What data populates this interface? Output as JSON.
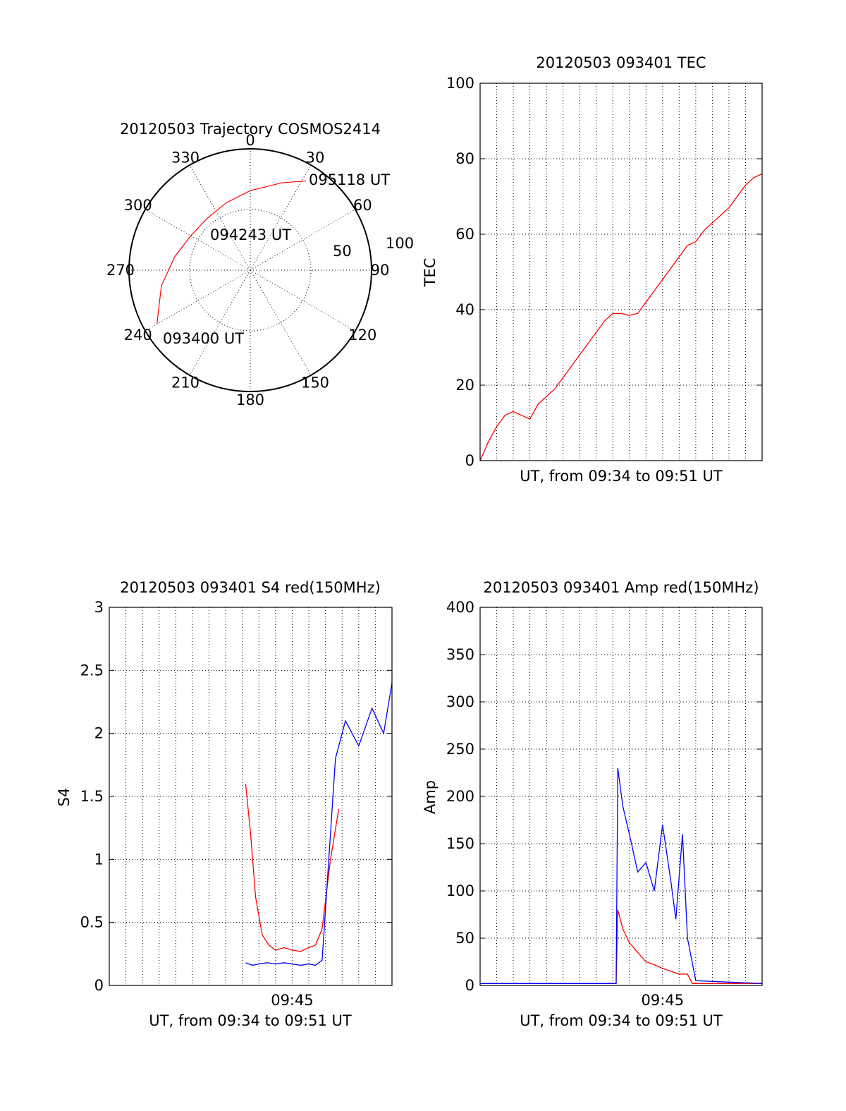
{
  "chart_data": [
    {
      "type": "polar",
      "title": "20120503 Trajectory COSMOS2414",
      "azimuth_labels": [
        "0",
        "30",
        "60",
        "90",
        "120",
        "150",
        "180",
        "210",
        "240",
        "270",
        "300",
        "330"
      ],
      "radius_labels": [
        "50",
        "100"
      ],
      "series": [
        {
          "color": "#ff0000",
          "points": [
            {
              "az": 240,
              "el": 10
            },
            {
              "az": 260,
              "el": 23
            },
            {
              "az": 280,
              "el": 33
            },
            {
              "az": 300,
              "el": 39
            },
            {
              "az": 320,
              "el": 40
            },
            {
              "az": 340,
              "el": 37
            },
            {
              "az": 360,
              "el": 31
            },
            {
              "az": 380,
              "el": 21
            },
            {
              "az": 392,
              "el": 12
            }
          ]
        }
      ],
      "annotations": [
        "095118 UT",
        "094243 UT",
        "093400 UT"
      ]
    },
    {
      "type": "line",
      "title": "20120503 093401 TEC",
      "xlabel": "UT, from 09:34 to 09:51 UT",
      "ylabel": "TEC",
      "xlim": [
        0,
        17
      ],
      "ylim": [
        0,
        100
      ],
      "yticks": [
        "0",
        "20",
        "40",
        "60",
        "80",
        "100"
      ],
      "xticks": [],
      "grid": true,
      "series": [
        {
          "color": "#ff0000",
          "x": [
            0,
            0.5,
            1.0,
            1.5,
            2.0,
            2.5,
            3.0,
            3.5,
            4.0,
            4.5,
            5.0,
            5.5,
            6.0,
            6.5,
            7.0,
            7.5,
            8.0,
            8.5,
            9.0,
            9.5,
            10.0,
            10.5,
            11.0,
            11.5,
            12.0,
            12.5,
            13.0,
            13.5,
            14.0,
            14.5,
            15.0,
            15.5,
            16.0,
            16.5,
            17.0
          ],
          "values": [
            0,
            5,
            9,
            12,
            13,
            12,
            11,
            15,
            17,
            19,
            22,
            25,
            28,
            31,
            34,
            37,
            39,
            39,
            38.5,
            39,
            42,
            45,
            48,
            51,
            54,
            57,
            58,
            61,
            63,
            65,
            67,
            70,
            73,
            75,
            76
          ]
        }
      ]
    },
    {
      "type": "line",
      "title": "20120503 093401 S4 red(150MHz)",
      "xlabel": "UT, from 09:34 to 09:51 UT",
      "ylabel": "S4",
      "xlim": [
        0,
        17
      ],
      "ylim": [
        0,
        3
      ],
      "yticks": [
        "0",
        "0.5",
        "1",
        "1.5",
        "2",
        "2.5",
        "3"
      ],
      "xticks": [
        "09:45"
      ],
      "grid": true,
      "series": [
        {
          "color": "#ff0000",
          "x": [
            8.2,
            8.5,
            8.8,
            9.2,
            9.6,
            10.0,
            10.5,
            11.0,
            11.5,
            12.0,
            12.4,
            12.8,
            13.3,
            13.8
          ],
          "values": [
            1.6,
            1.2,
            0.7,
            0.4,
            0.32,
            0.28,
            0.3,
            0.28,
            0.27,
            0.3,
            0.32,
            0.45,
            1.0,
            1.4
          ]
        },
        {
          "color": "#0000ff",
          "x": [
            8.2,
            8.6,
            9.0,
            9.5,
            10.0,
            10.5,
            11.0,
            11.5,
            12.0,
            12.4,
            12.8,
            13.2,
            13.6,
            14.2,
            15.0,
            15.8,
            16.5,
            17.0
          ],
          "values": [
            0.18,
            0.16,
            0.17,
            0.18,
            0.17,
            0.18,
            0.17,
            0.16,
            0.17,
            0.16,
            0.2,
            1.0,
            1.8,
            2.1,
            1.9,
            2.2,
            2.0,
            2.4
          ]
        }
      ]
    },
    {
      "type": "line",
      "title": "20120503 093401 Amp red(150MHz)",
      "xlabel": "UT, from 09:34 to 09:51 UT",
      "ylabel": "Amp",
      "xlim": [
        0,
        17
      ],
      "ylim": [
        0,
        400
      ],
      "yticks": [
        "0",
        "50",
        "100",
        "150",
        "200",
        "250",
        "300",
        "350",
        "400"
      ],
      "xticks": [
        "09:45"
      ],
      "grid": true,
      "series": [
        {
          "color": "#ff0000",
          "x": [
            0,
            8.2,
            8.3,
            8.6,
            9.0,
            9.5,
            10.0,
            10.5,
            11.0,
            11.5,
            12.0,
            12.5,
            12.8,
            17.0
          ],
          "values": [
            2,
            2,
            80,
            60,
            45,
            35,
            25,
            22,
            18,
            15,
            12,
            12,
            2,
            2
          ]
        },
        {
          "color": "#0000ff",
          "x": [
            0,
            8.2,
            8.3,
            8.6,
            9.0,
            9.5,
            10.0,
            10.5,
            11.0,
            11.5,
            11.8,
            12.2,
            12.5,
            13.0,
            17.0
          ],
          "values": [
            2,
            2,
            230,
            190,
            160,
            120,
            130,
            100,
            170,
            110,
            70,
            160,
            50,
            5,
            2
          ]
        }
      ]
    }
  ]
}
